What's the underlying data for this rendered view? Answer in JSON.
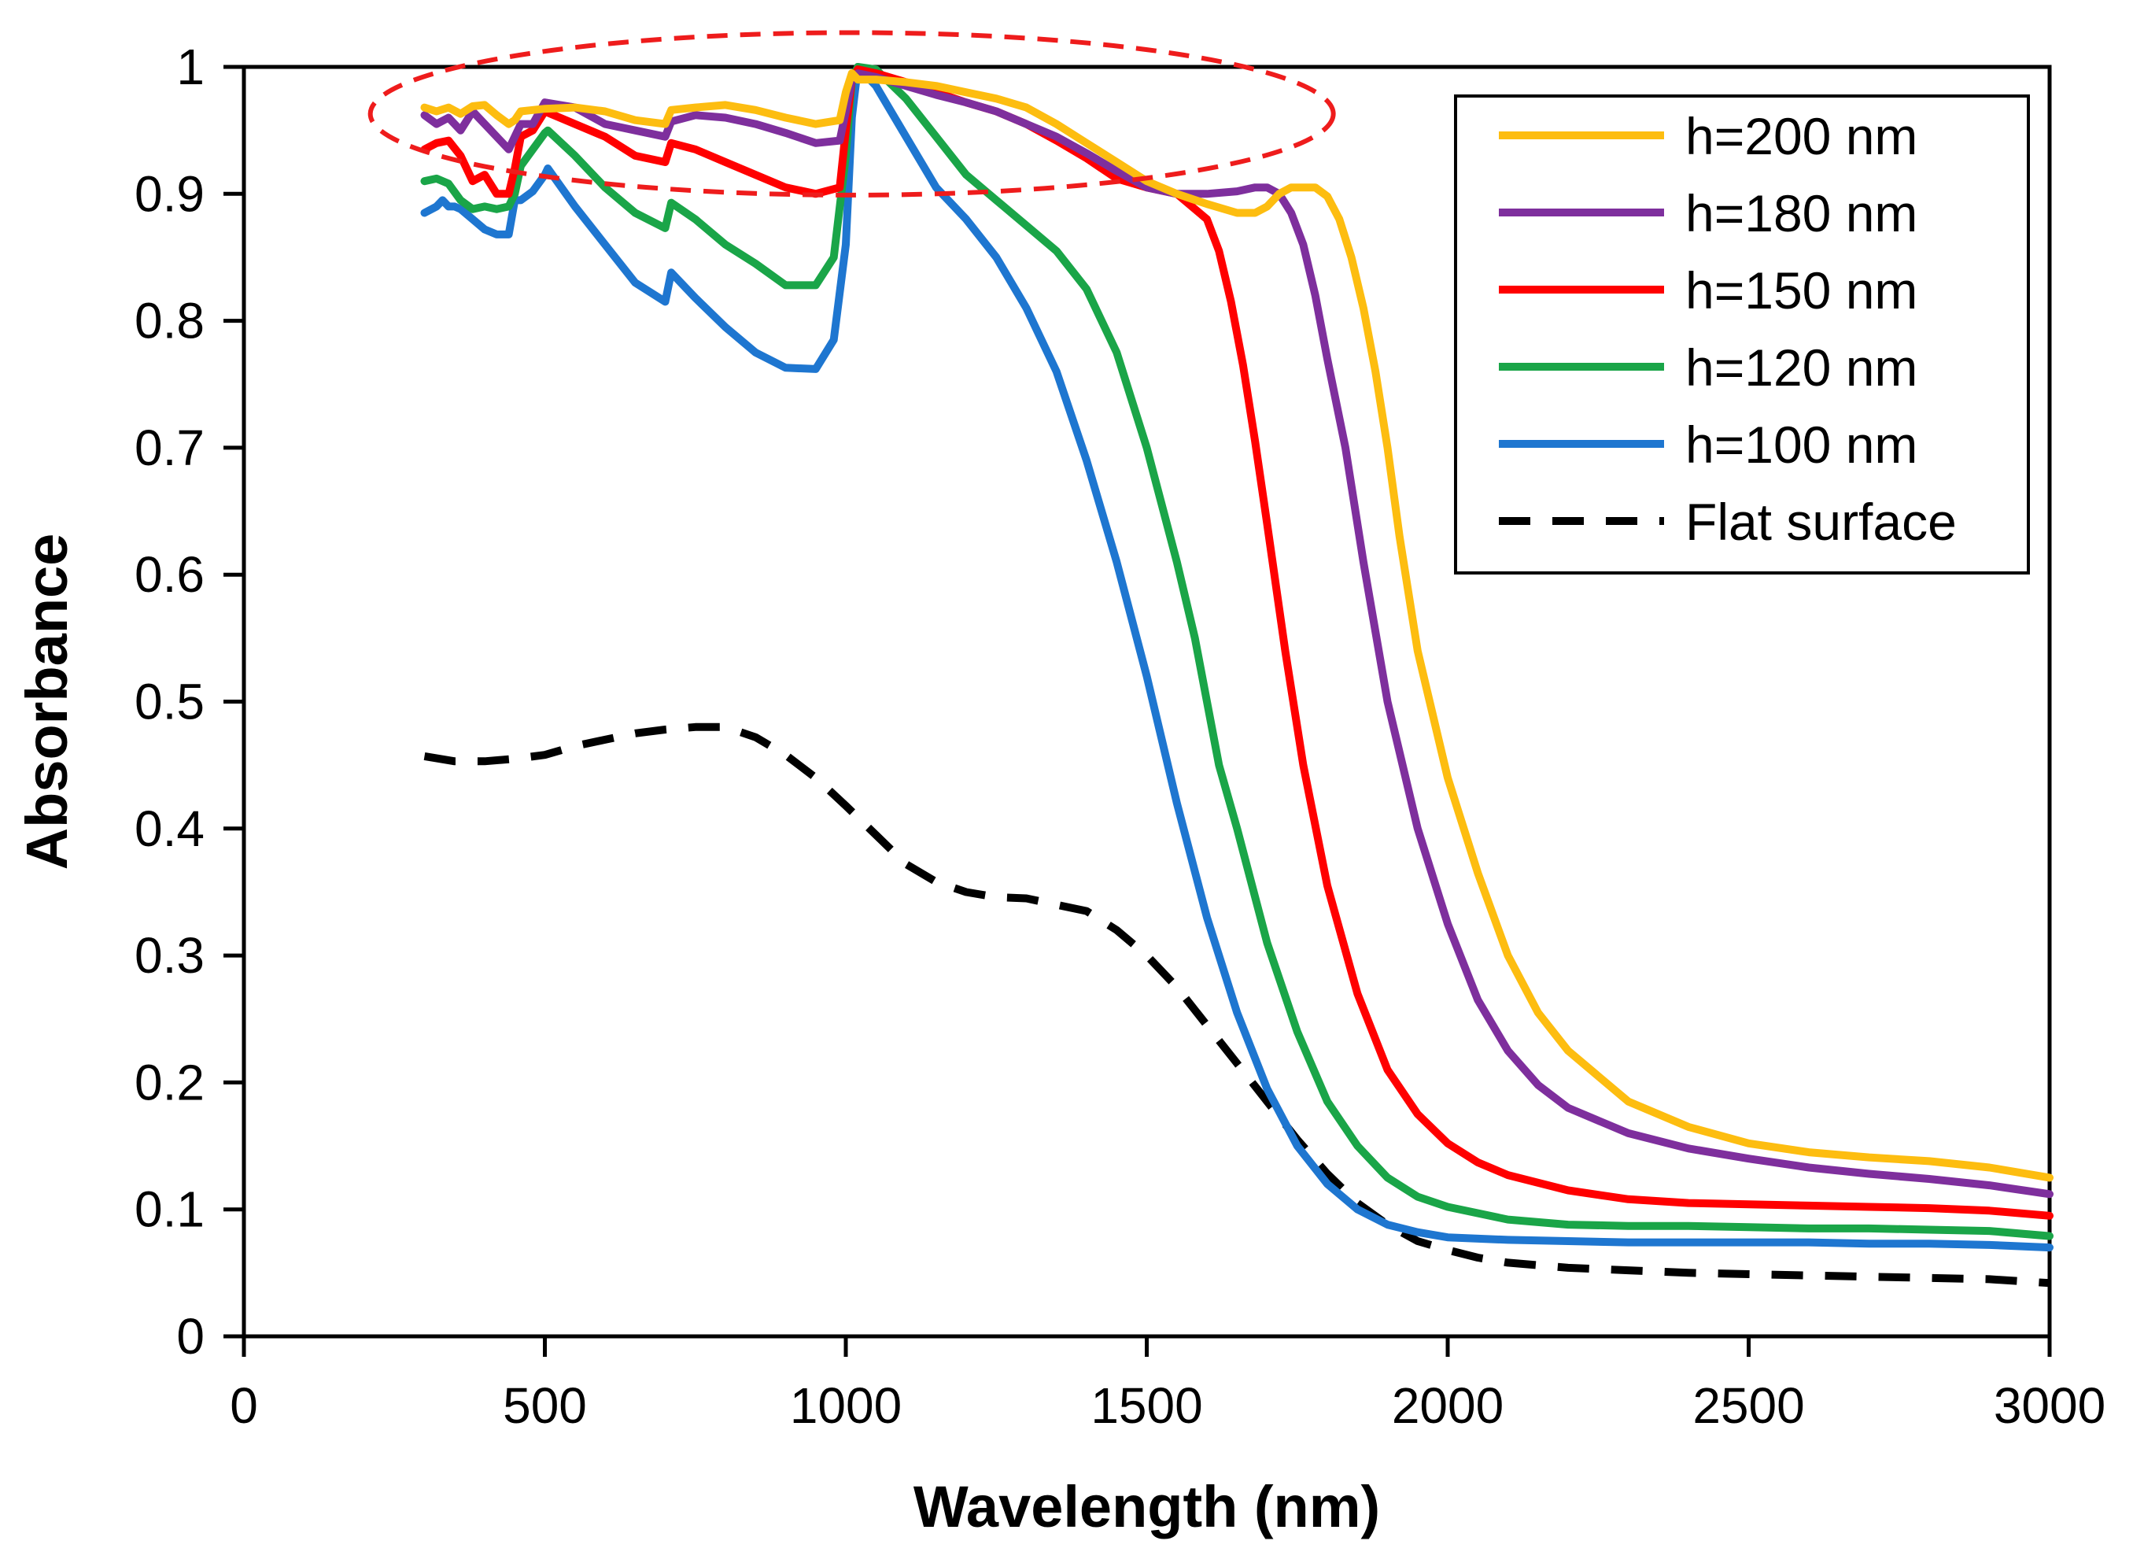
{
  "chart_data": {
    "type": "line",
    "title": "",
    "xlabel": "Wavelength (nm)",
    "ylabel": "Absorbance",
    "xlim": [
      0,
      3000
    ],
    "ylim": [
      0,
      1
    ],
    "xticks": [
      0,
      500,
      1000,
      1500,
      2000,
      2500,
      3000
    ],
    "yticks": [
      0,
      0.1,
      0.2,
      0.3,
      0.4,
      0.5,
      0.6,
      0.7,
      0.8,
      0.9,
      1
    ],
    "xtick_labels": [
      "0",
      "500",
      "1000",
      "1500",
      "2000",
      "2500",
      "3000"
    ],
    "ytick_labels": [
      "0",
      "0.1",
      "0.2",
      "0.3",
      "0.4",
      "0.5",
      "0.6",
      "0.7",
      "0.8",
      "0.9",
      "1"
    ],
    "grid": false,
    "legend_position": "top-right",
    "annotations": [
      {
        "type": "dashed-ellipse",
        "color": "#ee1c1c",
        "center": [
          1010,
          0.963
        ],
        "x_radius": 800,
        "y_radius": 0.064
      }
    ],
    "series": [
      {
        "name": "h=200 nm",
        "color": "#fdbd10",
        "style": "solid",
        "x": [
          300,
          320,
          340,
          360,
          380,
          400,
          420,
          440,
          450,
          460,
          480,
          500,
          550,
          600,
          650,
          700,
          710,
          750,
          800,
          850,
          900,
          950,
          990,
          1000,
          1010,
          1020,
          1050,
          1100,
          1150,
          1200,
          1250,
          1300,
          1350,
          1400,
          1450,
          1500,
          1550,
          1600,
          1650,
          1680,
          1700,
          1720,
          1740,
          1760,
          1780,
          1800,
          1820,
          1840,
          1860,
          1880,
          1900,
          1920,
          1950,
          2000,
          2050,
          2100,
          2150,
          2200,
          2300,
          2400,
          2500,
          2600,
          2700,
          2800,
          2900,
          3000
        ],
        "y": [
          0.968,
          0.965,
          0.968,
          0.963,
          0.969,
          0.97,
          0.962,
          0.955,
          0.958,
          0.965,
          0.966,
          0.967,
          0.968,
          0.965,
          0.958,
          0.955,
          0.966,
          0.968,
          0.97,
          0.966,
          0.96,
          0.955,
          0.958,
          0.98,
          0.995,
          0.99,
          0.99,
          0.988,
          0.985,
          0.98,
          0.975,
          0.968,
          0.955,
          0.94,
          0.925,
          0.91,
          0.9,
          0.892,
          0.885,
          0.885,
          0.89,
          0.9,
          0.905,
          0.905,
          0.905,
          0.898,
          0.88,
          0.85,
          0.81,
          0.76,
          0.7,
          0.63,
          0.54,
          0.44,
          0.365,
          0.3,
          0.255,
          0.225,
          0.185,
          0.165,
          0.152,
          0.145,
          0.141,
          0.138,
          0.133,
          0.125
        ]
      },
      {
        "name": "h=180 nm",
        "color": "#7e2f9d",
        "style": "solid",
        "x": [
          300,
          320,
          340,
          360,
          380,
          400,
          420,
          440,
          450,
          460,
          480,
          500,
          550,
          600,
          650,
          700,
          710,
          750,
          800,
          850,
          900,
          950,
          990,
          1000,
          1010,
          1020,
          1050,
          1100,
          1150,
          1200,
          1250,
          1300,
          1350,
          1400,
          1450,
          1500,
          1550,
          1600,
          1650,
          1680,
          1700,
          1720,
          1740,
          1760,
          1780,
          1800,
          1830,
          1860,
          1900,
          1950,
          2000,
          2050,
          2100,
          2150,
          2200,
          2300,
          2400,
          2500,
          2600,
          2700,
          2800,
          2900,
          3000
        ],
        "y": [
          0.962,
          0.955,
          0.96,
          0.95,
          0.965,
          0.955,
          0.945,
          0.935,
          0.945,
          0.955,
          0.955,
          0.972,
          0.968,
          0.955,
          0.95,
          0.945,
          0.957,
          0.962,
          0.96,
          0.955,
          0.948,
          0.94,
          0.942,
          0.965,
          0.99,
          0.995,
          0.992,
          0.985,
          0.978,
          0.972,
          0.965,
          0.955,
          0.945,
          0.932,
          0.918,
          0.905,
          0.9,
          0.9,
          0.902,
          0.905,
          0.905,
          0.9,
          0.885,
          0.86,
          0.82,
          0.77,
          0.7,
          0.61,
          0.5,
          0.4,
          0.325,
          0.265,
          0.225,
          0.198,
          0.18,
          0.16,
          0.148,
          0.14,
          0.133,
          0.128,
          0.124,
          0.119,
          0.112
        ]
      },
      {
        "name": "h=150 nm",
        "color": "#ff0000",
        "style": "solid",
        "x": [
          300,
          320,
          340,
          360,
          380,
          400,
          420,
          440,
          450,
          460,
          480,
          500,
          550,
          600,
          650,
          700,
          710,
          750,
          800,
          850,
          900,
          950,
          990,
          1000,
          1010,
          1020,
          1050,
          1100,
          1150,
          1200,
          1250,
          1300,
          1350,
          1400,
          1450,
          1500,
          1550,
          1600,
          1620,
          1640,
          1660,
          1680,
          1700,
          1730,
          1760,
          1800,
          1850,
          1900,
          1950,
          2000,
          2050,
          2100,
          2200,
          2300,
          2400,
          2500,
          2600,
          2700,
          2800,
          2900,
          3000
        ],
        "y": [
          0.935,
          0.94,
          0.942,
          0.93,
          0.91,
          0.915,
          0.9,
          0.9,
          0.92,
          0.945,
          0.95,
          0.965,
          0.955,
          0.945,
          0.93,
          0.925,
          0.94,
          0.935,
          0.925,
          0.915,
          0.905,
          0.9,
          0.905,
          0.95,
          0.99,
          0.998,
          0.995,
          0.988,
          0.98,
          0.972,
          0.965,
          0.955,
          0.942,
          0.928,
          0.912,
          0.905,
          0.9,
          0.88,
          0.855,
          0.815,
          0.765,
          0.705,
          0.64,
          0.54,
          0.45,
          0.355,
          0.27,
          0.21,
          0.175,
          0.152,
          0.137,
          0.127,
          0.115,
          0.108,
          0.105,
          0.104,
          0.103,
          0.102,
          0.101,
          0.099,
          0.095
        ]
      },
      {
        "name": "h=120 nm",
        "color": "#1aa548",
        "style": "solid",
        "x": [
          300,
          320,
          340,
          360,
          380,
          400,
          420,
          440,
          450,
          460,
          480,
          500,
          505,
          550,
          600,
          650,
          700,
          710,
          750,
          800,
          850,
          900,
          950,
          980,
          1000,
          1010,
          1020,
          1050,
          1100,
          1150,
          1200,
          1250,
          1300,
          1350,
          1400,
          1450,
          1500,
          1550,
          1580,
          1600,
          1620,
          1650,
          1700,
          1750,
          1800,
          1850,
          1900,
          1950,
          2000,
          2100,
          2200,
          2300,
          2400,
          2500,
          2600,
          2700,
          2800,
          2900,
          3000
        ],
        "y": [
          0.91,
          0.912,
          0.908,
          0.895,
          0.888,
          0.89,
          0.888,
          0.89,
          0.9,
          0.922,
          0.935,
          0.948,
          0.95,
          0.93,
          0.905,
          0.885,
          0.873,
          0.893,
          0.88,
          0.86,
          0.845,
          0.828,
          0.828,
          0.85,
          0.93,
          0.99,
          1.0,
          0.998,
          0.975,
          0.945,
          0.915,
          0.895,
          0.875,
          0.855,
          0.825,
          0.775,
          0.7,
          0.61,
          0.55,
          0.5,
          0.45,
          0.4,
          0.31,
          0.24,
          0.185,
          0.15,
          0.125,
          0.11,
          0.102,
          0.092,
          0.088,
          0.087,
          0.087,
          0.086,
          0.085,
          0.085,
          0.084,
          0.083,
          0.079
        ]
      },
      {
        "name": "h=100 nm",
        "color": "#1e76d0",
        "style": "solid",
        "x": [
          300,
          320,
          330,
          340,
          350,
          360,
          380,
          400,
          420,
          440,
          450,
          460,
          480,
          500,
          505,
          550,
          600,
          650,
          700,
          710,
          750,
          800,
          850,
          900,
          950,
          980,
          1000,
          1010,
          1020,
          1050,
          1100,
          1150,
          1200,
          1250,
          1300,
          1350,
          1400,
          1450,
          1500,
          1550,
          1600,
          1650,
          1700,
          1750,
          1800,
          1850,
          1900,
          1950,
          2000,
          2100,
          2200,
          2300,
          2400,
          2500,
          2600,
          2700,
          2800,
          2900,
          3000
        ],
        "y": [
          0.885,
          0.89,
          0.895,
          0.89,
          0.89,
          0.888,
          0.88,
          0.872,
          0.868,
          0.868,
          0.895,
          0.895,
          0.902,
          0.915,
          0.92,
          0.89,
          0.86,
          0.83,
          0.815,
          0.838,
          0.818,
          0.795,
          0.775,
          0.763,
          0.762,
          0.785,
          0.86,
          0.96,
          1.0,
          0.985,
          0.945,
          0.905,
          0.88,
          0.85,
          0.81,
          0.76,
          0.69,
          0.61,
          0.52,
          0.42,
          0.33,
          0.255,
          0.195,
          0.15,
          0.12,
          0.1,
          0.088,
          0.082,
          0.078,
          0.076,
          0.075,
          0.074,
          0.074,
          0.074,
          0.074,
          0.073,
          0.073,
          0.072,
          0.07
        ]
      },
      {
        "name": "Flat surface",
        "color": "#000000",
        "style": "dashed",
        "x": [
          300,
          350,
          400,
          450,
          500,
          550,
          600,
          650,
          700,
          750,
          800,
          850,
          900,
          950,
          1000,
          1050,
          1100,
          1150,
          1200,
          1250,
          1300,
          1350,
          1400,
          1450,
          1500,
          1550,
          1600,
          1650,
          1700,
          1750,
          1800,
          1850,
          1900,
          1950,
          2000,
          2050,
          2100,
          2200,
          2300,
          2400,
          2500,
          2600,
          2700,
          2800,
          2900,
          3000
        ],
        "y": [
          0.457,
          0.453,
          0.453,
          0.455,
          0.458,
          0.465,
          0.47,
          0.475,
          0.478,
          0.48,
          0.48,
          0.472,
          0.458,
          0.44,
          0.418,
          0.395,
          0.372,
          0.358,
          0.35,
          0.346,
          0.345,
          0.34,
          0.335,
          0.32,
          0.3,
          0.275,
          0.245,
          0.215,
          0.185,
          0.155,
          0.128,
          0.105,
          0.088,
          0.075,
          0.068,
          0.062,
          0.058,
          0.054,
          0.052,
          0.05,
          0.049,
          0.048,
          0.047,
          0.046,
          0.045,
          0.042
        ]
      }
    ]
  }
}
